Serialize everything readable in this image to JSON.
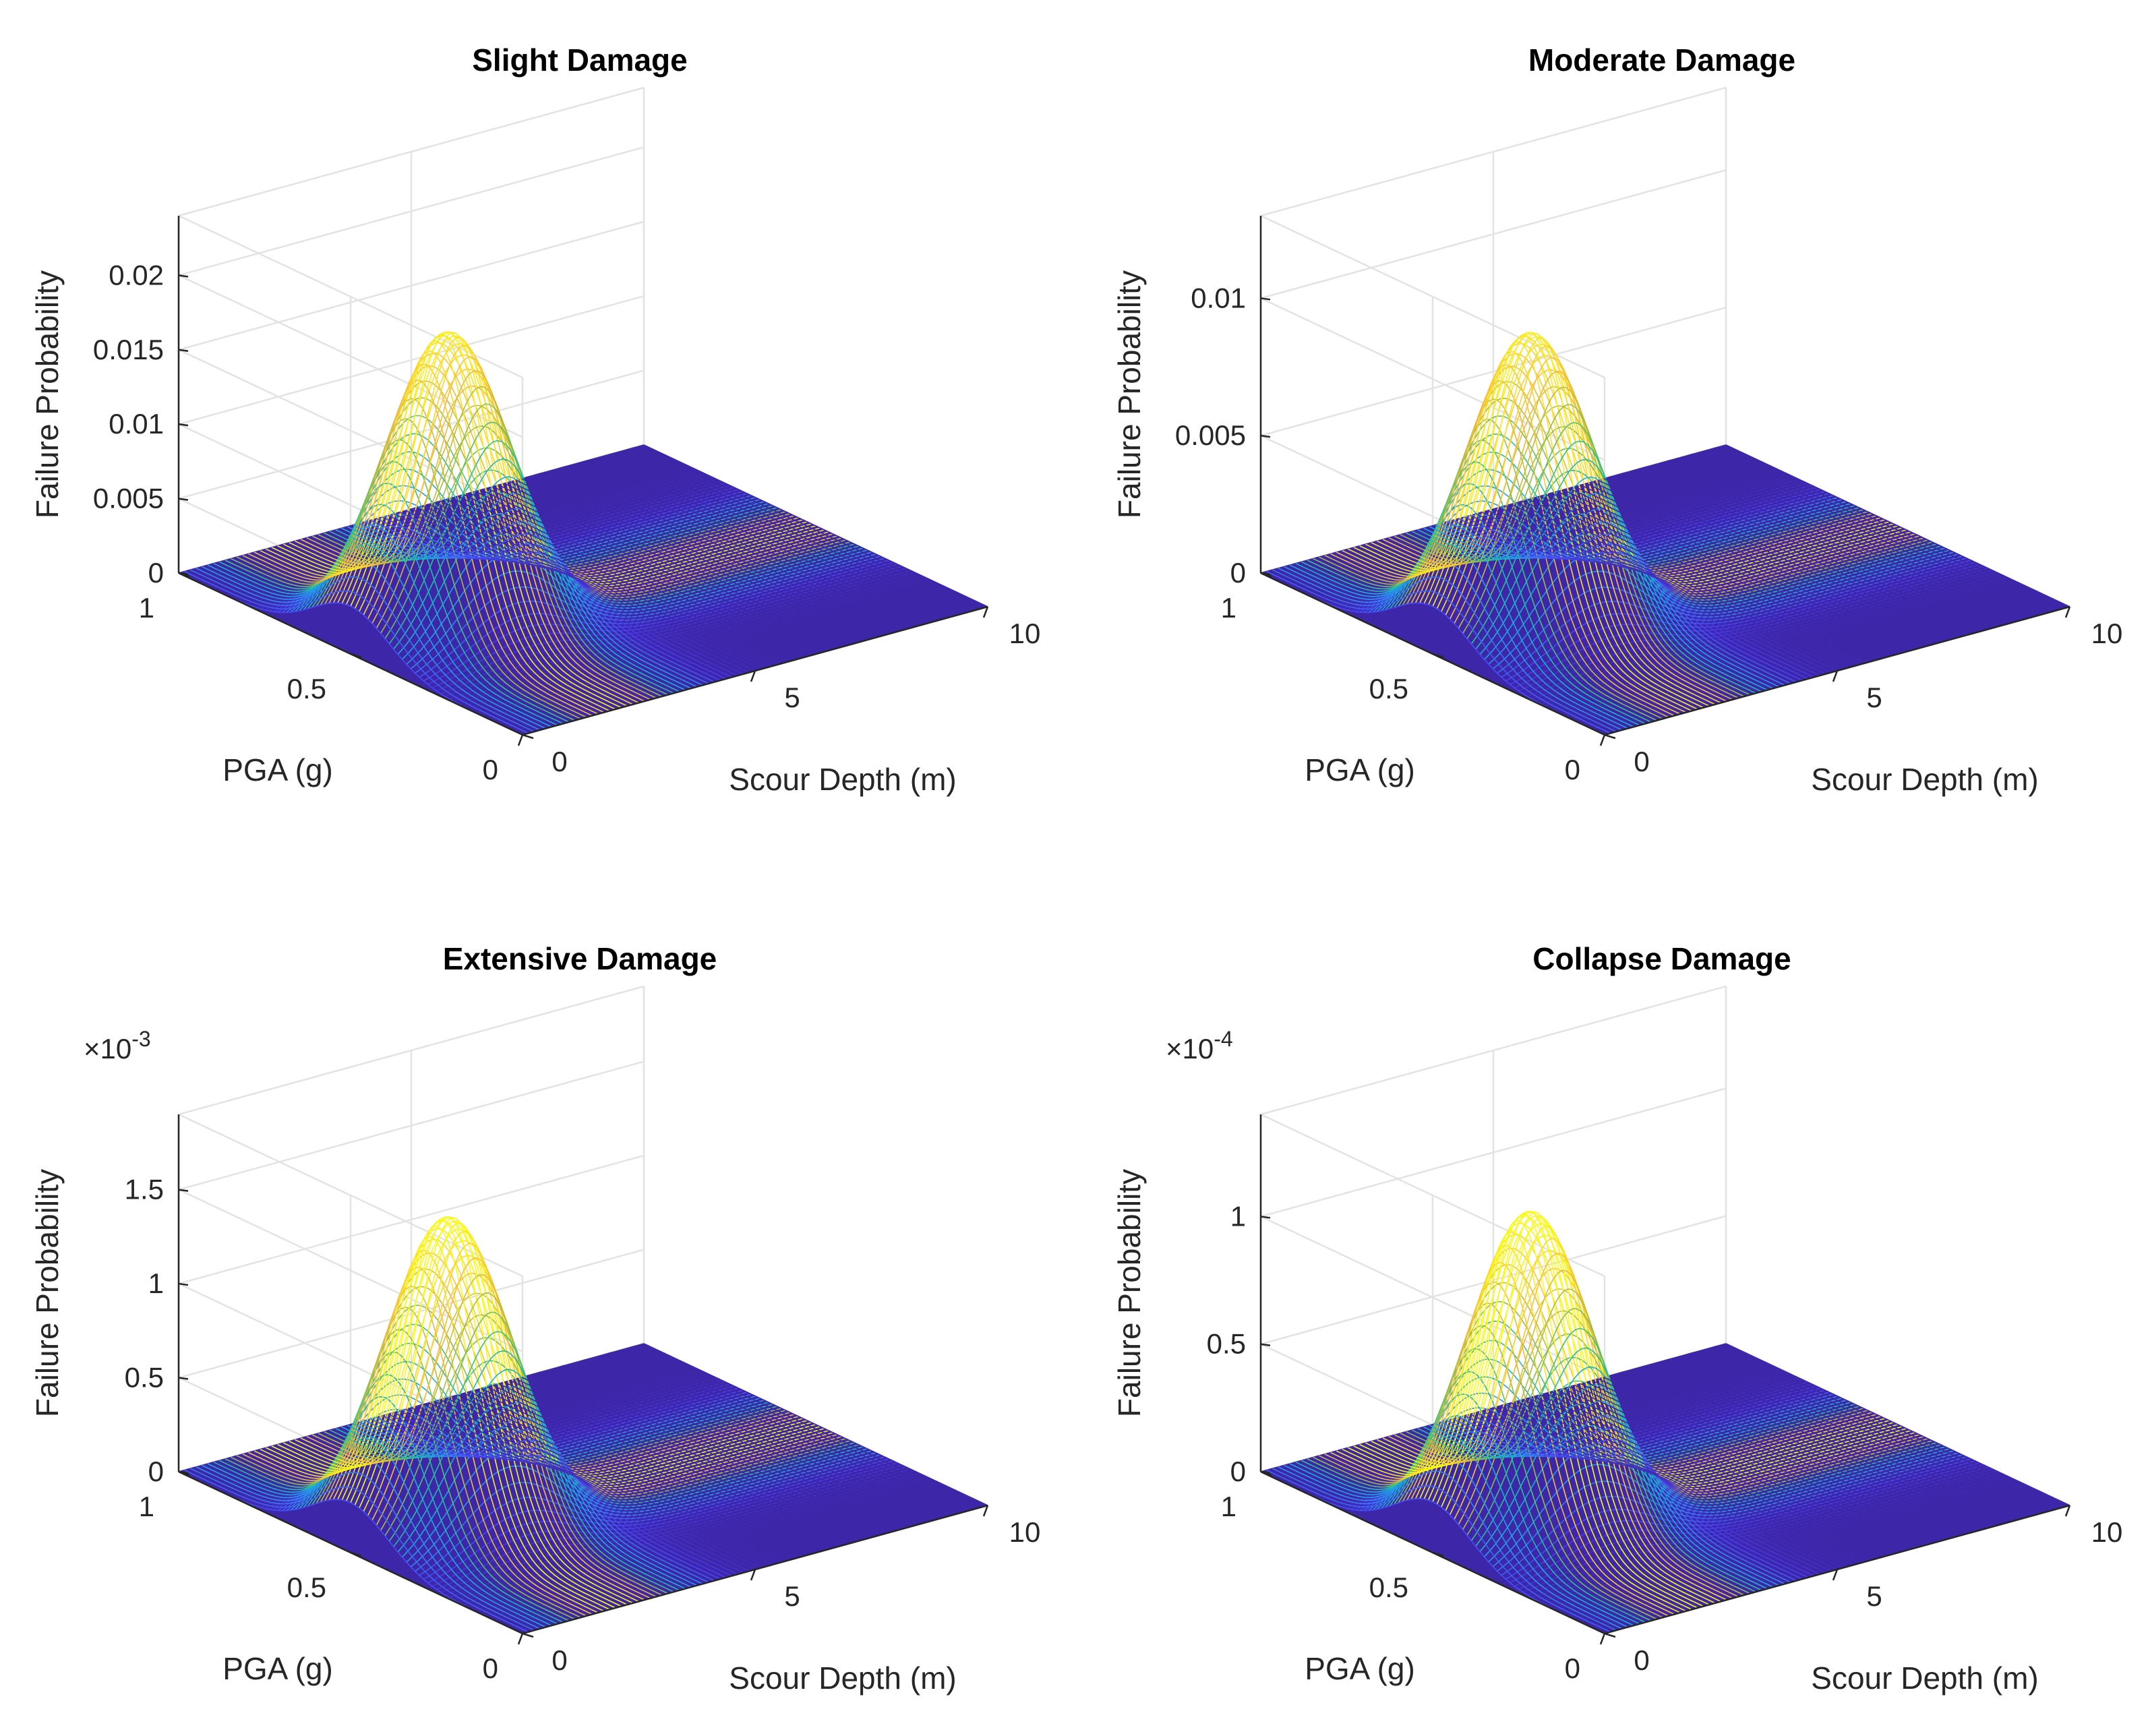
{
  "figure": {
    "background": "#ffffff",
    "colormap": [
      "#3e26a8",
      "#4743f8",
      "#2d8ff0",
      "#15b1d4",
      "#2ac28c",
      "#a5be3c",
      "#fcbc3d",
      "#f9fb14"
    ]
  },
  "chart_data": [
    {
      "type": "surface",
      "title": "Slight Damage",
      "xlabel": "Scour Depth (m)",
      "ylabel": "PGA (g)",
      "zlabel": "Failure Probability",
      "xlim": [
        0,
        10
      ],
      "ylim": [
        0,
        1
      ],
      "zlim": [
        0,
        0.024
      ],
      "xticks": [
        0,
        5,
        10
      ],
      "xtick_labels": [
        "0",
        "5",
        "10"
      ],
      "yticks": [
        0,
        0.5,
        1
      ],
      "ytick_labels": [
        "0",
        "0.5",
        "1"
      ],
      "zticks": [
        0,
        0.005,
        0.01,
        0.015,
        0.02
      ],
      "ztick_labels": [
        "0",
        "0.005",
        "0.01",
        "0.015",
        "0.02"
      ],
      "exponent_label": "",
      "surface": {
        "peak_x": 2.1,
        "peak_y": 0.5,
        "peak_value": 0.0198,
        "sigma_x": 1.1,
        "sigma_y": 0.11
      }
    },
    {
      "type": "surface",
      "title": "Moderate Damage",
      "xlabel": "Scour Depth (m)",
      "ylabel": "PGA (g)",
      "zlabel": "Failure Probability",
      "xlim": [
        0,
        10
      ],
      "ylim": [
        0,
        1
      ],
      "zlim": [
        0,
        0.013
      ],
      "xticks": [
        0,
        5,
        10
      ],
      "xtick_labels": [
        "0",
        "5",
        "10"
      ],
      "yticks": [
        0,
        0.5,
        1
      ],
      "ytick_labels": [
        "0",
        "0.5",
        "1"
      ],
      "zticks": [
        0,
        0.005,
        0.01
      ],
      "ztick_labels": [
        "0",
        "0.005",
        "0.01"
      ],
      "exponent_label": "",
      "surface": {
        "peak_x": 2.1,
        "peak_y": 0.5,
        "peak_value": 0.0107,
        "sigma_x": 1.1,
        "sigma_y": 0.11
      }
    },
    {
      "type": "surface",
      "title": "Extensive Damage",
      "xlabel": "Scour Depth (m)",
      "ylabel": "PGA (g)",
      "zlabel": "Failure Probability",
      "xlim": [
        0,
        10
      ],
      "ylim": [
        0,
        1
      ],
      "zlim": [
        0,
        0.0019
      ],
      "xticks": [
        0,
        5,
        10
      ],
      "xtick_labels": [
        "0",
        "5",
        "10"
      ],
      "yticks": [
        0,
        0.5,
        1
      ],
      "ytick_labels": [
        "0",
        "0.5",
        "1"
      ],
      "zticks": [
        0,
        0.0005,
        0.001,
        0.0015
      ],
      "ztick_labels": [
        "0",
        "0.5",
        "1",
        "1.5"
      ],
      "exponent_label": "×10",
      "exponent_power": "-3",
      "surface": {
        "peak_x": 2.1,
        "peak_y": 0.5,
        "peak_value": 0.00164,
        "sigma_x": 1.1,
        "sigma_y": 0.11
      }
    },
    {
      "type": "surface",
      "title": "Collapse Damage",
      "xlabel": "Scour Depth (m)",
      "ylabel": "PGA (g)",
      "zlabel": "Failure Probability",
      "xlim": [
        0,
        10
      ],
      "ylim": [
        0,
        1
      ],
      "zlim": [
        0,
        0.00014
      ],
      "xticks": [
        0,
        5,
        10
      ],
      "xtick_labels": [
        "0",
        "5",
        "10"
      ],
      "yticks": [
        0,
        0.5,
        1
      ],
      "ytick_labels": [
        "0",
        "0.5",
        "1"
      ],
      "zticks": [
        0,
        5e-05,
        0.0001
      ],
      "ztick_labels": [
        "0",
        "0.5",
        "1"
      ],
      "exponent_label": "×10",
      "exponent_power": "-4",
      "surface": {
        "peak_x": 2.1,
        "peak_y": 0.5,
        "peak_value": 0.000123,
        "sigma_x": 1.1,
        "sigma_y": 0.11
      }
    }
  ]
}
